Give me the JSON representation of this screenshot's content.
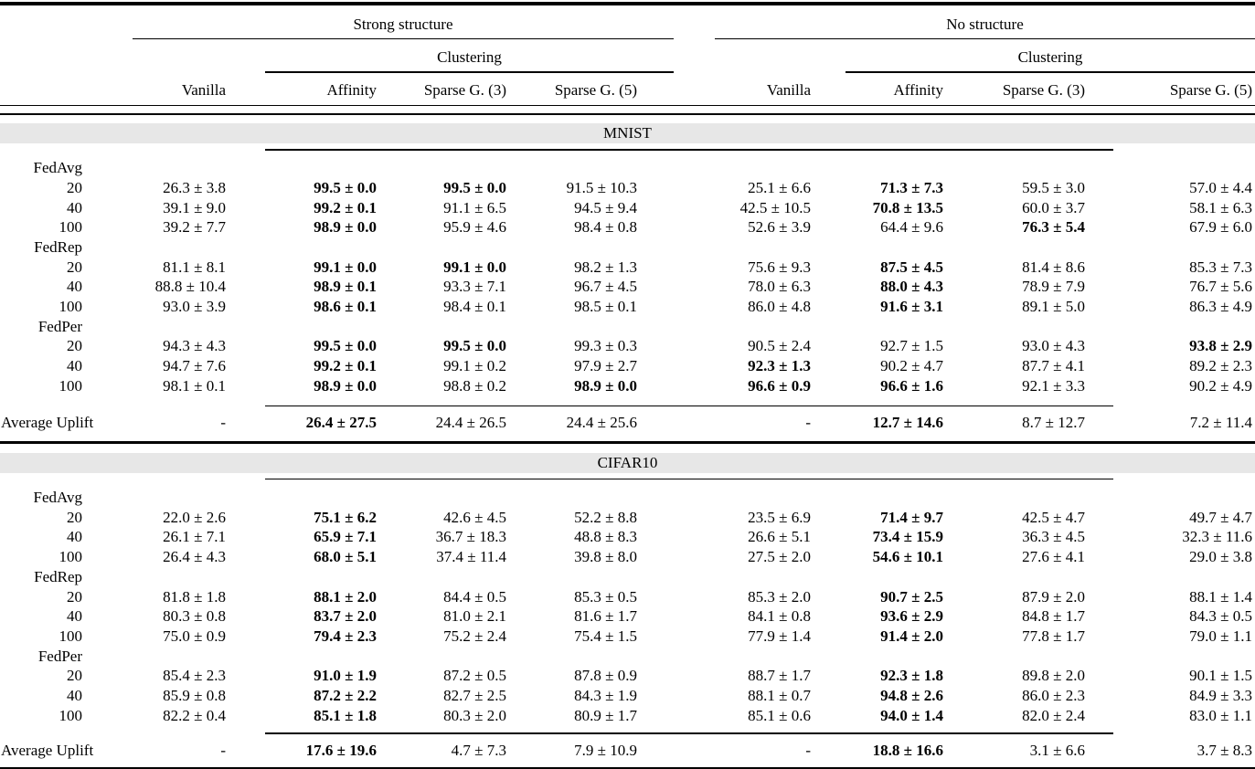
{
  "table": {
    "group_headers": [
      {
        "label": "Strong structure"
      },
      {
        "label": "No structure"
      }
    ],
    "clustering_label": "Clustering",
    "column_headers": [
      "Vanilla",
      "Affinity",
      "Sparse G. (3)",
      "Sparse G. (5)",
      "Vanilla",
      "Affinity",
      "Sparse G. (3)",
      "Sparse G. (5)"
    ],
    "average_uplift_label": "Average Uplift",
    "sections": [
      {
        "title": "MNIST",
        "methods": [
          {
            "name": "FedAvg",
            "rows": [
              {
                "label": "20",
                "values": [
                  "26.3 ± 3.8",
                  "99.5 ± 0.0",
                  "99.5 ± 0.0",
                  "91.5 ± 10.3",
                  "25.1 ± 6.6",
                  "71.3 ± 7.3",
                  "59.5 ± 3.0",
                  "57.0 ± 4.4"
                ],
                "bold": [
                  0,
                  1,
                  1,
                  0,
                  0,
                  1,
                  0,
                  0
                ]
              },
              {
                "label": "40",
                "values": [
                  "39.1 ± 9.0",
                  "99.2 ± 0.1",
                  "91.1 ± 6.5",
                  "94.5 ± 9.4",
                  "42.5 ± 10.5",
                  "70.8 ± 13.5",
                  "60.0 ± 3.7",
                  "58.1 ± 6.3"
                ],
                "bold": [
                  0,
                  1,
                  0,
                  0,
                  0,
                  1,
                  0,
                  0
                ]
              },
              {
                "label": "100",
                "values": [
                  "39.2 ± 7.7",
                  "98.9 ± 0.0",
                  "95.9 ± 4.6",
                  "98.4 ± 0.8",
                  "52.6 ± 3.9",
                  "64.4 ± 9.6",
                  "76.3 ± 5.4",
                  "67.9 ± 6.0"
                ],
                "bold": [
                  0,
                  1,
                  0,
                  0,
                  0,
                  0,
                  1,
                  0
                ]
              }
            ]
          },
          {
            "name": "FedRep",
            "rows": [
              {
                "label": "20",
                "values": [
                  "81.1 ± 8.1",
                  "99.1 ± 0.0",
                  "99.1 ± 0.0",
                  "98.2 ± 1.3",
                  "75.6 ± 9.3",
                  "87.5 ± 4.5",
                  "81.4 ± 8.6",
                  "85.3 ± 7.3"
                ],
                "bold": [
                  0,
                  1,
                  1,
                  0,
                  0,
                  1,
                  0,
                  0
                ]
              },
              {
                "label": "40",
                "values": [
                  "88.8 ± 10.4",
                  "98.9 ± 0.1",
                  "93.3 ± 7.1",
                  "96.7 ± 4.5",
                  "78.0 ± 6.3",
                  "88.0 ± 4.3",
                  "78.9 ± 7.9",
                  "76.7 ± 5.6"
                ],
                "bold": [
                  0,
                  1,
                  0,
                  0,
                  0,
                  1,
                  0,
                  0
                ]
              },
              {
                "label": "100",
                "values": [
                  "93.0 ± 3.9",
                  "98.6 ± 0.1",
                  "98.4 ± 0.1",
                  "98.5 ± 0.1",
                  "86.0 ± 4.8",
                  "91.6 ± 3.1",
                  "89.1 ± 5.0",
                  "86.3 ± 4.9"
                ],
                "bold": [
                  0,
                  1,
                  0,
                  0,
                  0,
                  1,
                  0,
                  0
                ]
              }
            ]
          },
          {
            "name": "FedPer",
            "rows": [
              {
                "label": "20",
                "values": [
                  "94.3 ± 4.3",
                  "99.5 ± 0.0",
                  "99.5 ± 0.0",
                  "99.3 ± 0.3",
                  "90.5 ± 2.4",
                  "92.7 ± 1.5",
                  "93.0 ± 4.3",
                  "93.8 ± 2.9"
                ],
                "bold": [
                  0,
                  1,
                  1,
                  0,
                  0,
                  0,
                  0,
                  1
                ]
              },
              {
                "label": "40",
                "values": [
                  "94.7 ± 7.6",
                  "99.2 ± 0.1",
                  "99.1 ± 0.2",
                  "97.9 ± 2.7",
                  "92.3 ± 1.3",
                  "90.2 ± 4.7",
                  "87.7 ± 4.1",
                  "89.2 ± 2.3"
                ],
                "bold": [
                  0,
                  1,
                  0,
                  0,
                  1,
                  0,
                  0,
                  0
                ]
              },
              {
                "label": "100",
                "values": [
                  "98.1 ± 0.1",
                  "98.9 ± 0.0",
                  "98.8 ± 0.2",
                  "98.9 ± 0.0",
                  "96.6 ± 0.9",
                  "96.6 ± 1.6",
                  "92.1 ± 3.3",
                  "90.2 ± 4.9"
                ],
                "bold": [
                  0,
                  1,
                  0,
                  1,
                  1,
                  1,
                  0,
                  0
                ]
              }
            ]
          }
        ],
        "average_uplift": {
          "values": [
            "-",
            "26.4 ± 27.5",
            "24.4 ± 26.5",
            "24.4 ± 25.6",
            "-",
            "12.7 ± 14.6",
            "8.7 ± 12.7",
            "7.2 ± 11.4"
          ],
          "bold": [
            0,
            1,
            0,
            0,
            0,
            1,
            0,
            0
          ]
        }
      },
      {
        "title": "CIFAR10",
        "methods": [
          {
            "name": "FedAvg",
            "rows": [
              {
                "label": "20",
                "values": [
                  "22.0 ± 2.6",
                  "75.1 ± 6.2",
                  "42.6 ± 4.5",
                  "52.2 ± 8.8",
                  "23.5 ± 6.9",
                  "71.4 ± 9.7",
                  "42.5 ± 4.7",
                  "49.7 ± 4.7"
                ],
                "bold": [
                  0,
                  1,
                  0,
                  0,
                  0,
                  1,
                  0,
                  0
                ]
              },
              {
                "label": "40",
                "values": [
                  "26.1 ± 7.1",
                  "65.9 ± 7.1",
                  "36.7 ± 18.3",
                  "48.8 ± 8.3",
                  "26.6 ± 5.1",
                  "73.4 ± 15.9",
                  "36.3 ± 4.5",
                  "32.3 ± 11.6"
                ],
                "bold": [
                  0,
                  1,
                  0,
                  0,
                  0,
                  1,
                  0,
                  0
                ]
              },
              {
                "label": "100",
                "values": [
                  "26.4 ± 4.3",
                  "68.0 ± 5.1",
                  "37.4 ± 11.4",
                  "39.8 ± 8.0",
                  "27.5 ± 2.0",
                  "54.6 ± 10.1",
                  "27.6 ± 4.1",
                  "29.0 ± 3.8"
                ],
                "bold": [
                  0,
                  1,
                  0,
                  0,
                  0,
                  1,
                  0,
                  0
                ]
              }
            ]
          },
          {
            "name": "FedRep",
            "rows": [
              {
                "label": "20",
                "values": [
                  "81.8 ± 1.8",
                  "88.1 ± 2.0",
                  "84.4 ± 0.5",
                  "85.3 ± 0.5",
                  "85.3 ± 2.0",
                  "90.7 ± 2.5",
                  "87.9 ± 2.0",
                  "88.1 ± 1.4"
                ],
                "bold": [
                  0,
                  1,
                  0,
                  0,
                  0,
                  1,
                  0,
                  0
                ]
              },
              {
                "label": "40",
                "values": [
                  "80.3 ± 0.8",
                  "83.7 ± 2.0",
                  "81.0 ± 2.1",
                  "81.6 ± 1.7",
                  "84.1 ± 0.8",
                  "93.6 ± 2.9",
                  "84.8 ± 1.7",
                  "84.3 ± 0.5"
                ],
                "bold": [
                  0,
                  1,
                  0,
                  0,
                  0,
                  1,
                  0,
                  0
                ]
              },
              {
                "label": "100",
                "values": [
                  "75.0 ± 0.9",
                  "79.4 ± 2.3",
                  "75.2 ± 2.4",
                  "75.4 ± 1.5",
                  "77.9 ± 1.4",
                  "91.4 ± 2.0",
                  "77.8 ± 1.7",
                  "79.0 ± 1.1"
                ],
                "bold": [
                  0,
                  1,
                  0,
                  0,
                  0,
                  1,
                  0,
                  0
                ]
              }
            ]
          },
          {
            "name": "FedPer",
            "rows": [
              {
                "label": "20",
                "values": [
                  "85.4 ± 2.3",
                  "91.0 ± 1.9",
                  "87.2 ± 0.5",
                  "87.8 ± 0.9",
                  "88.7 ± 1.7",
                  "92.3 ± 1.8",
                  "89.8 ± 2.0",
                  "90.1 ± 1.5"
                ],
                "bold": [
                  0,
                  1,
                  0,
                  0,
                  0,
                  1,
                  0,
                  0
                ]
              },
              {
                "label": "40",
                "values": [
                  "85.9 ± 0.8",
                  "87.2 ± 2.2",
                  "82.7 ± 2.5",
                  "84.3 ± 1.9",
                  "88.1 ± 0.7",
                  "94.8 ± 2.6",
                  "86.0 ± 2.3",
                  "84.9 ± 3.3"
                ],
                "bold": [
                  0,
                  1,
                  0,
                  0,
                  0,
                  1,
                  0,
                  0
                ]
              },
              {
                "label": "100",
                "values": [
                  "82.2 ± 0.4",
                  "85.1 ± 1.8",
                  "80.3 ± 2.0",
                  "80.9 ± 1.7",
                  "85.1 ± 0.6",
                  "94.0 ± 1.4",
                  "82.0 ± 2.4",
                  "83.0 ± 1.1"
                ],
                "bold": [
                  0,
                  1,
                  0,
                  0,
                  0,
                  1,
                  0,
                  0
                ]
              }
            ]
          }
        ],
        "average_uplift": {
          "values": [
            "-",
            "17.6 ± 19.6",
            "4.7 ± 7.3",
            "7.9 ± 10.9",
            "-",
            "18.8 ± 16.6",
            "3.1 ± 6.6",
            "3.7 ± 8.3"
          ],
          "bold": [
            0,
            1,
            0,
            0,
            0,
            1,
            0,
            0
          ]
        }
      }
    ]
  }
}
